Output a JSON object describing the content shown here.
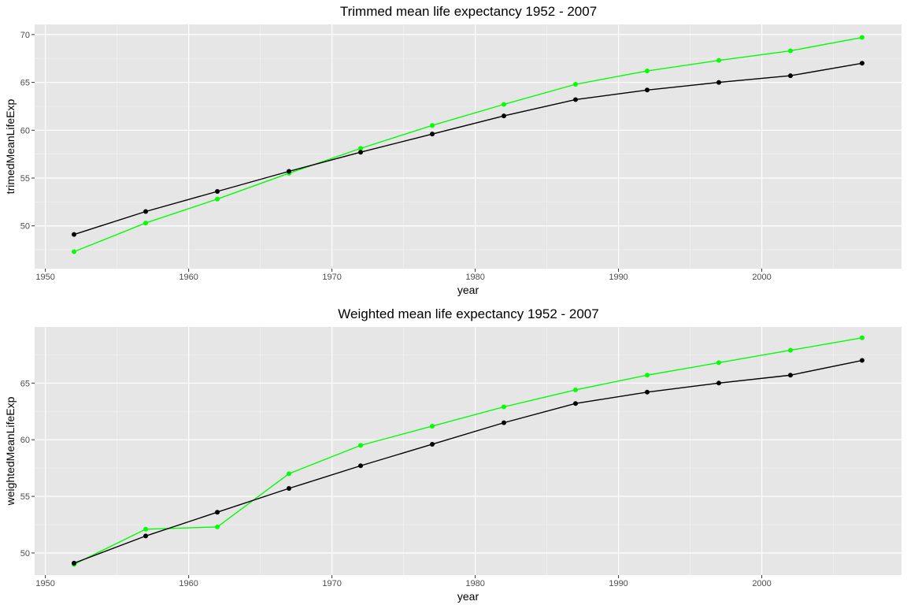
{
  "colors": {
    "panel_background": "#e6e6e6",
    "grid_major": "#ffffff",
    "grid_minor": "#f2f2f2",
    "tick_text": "#4d4d4d",
    "tick_mark": "#333333"
  },
  "chart_data": [
    {
      "type": "line",
      "title": "Trimmed mean life expectancy 1952 - 2007",
      "xlabel": "year",
      "ylabel": "trimedMeanLifeExp",
      "xlim": [
        1949.25,
        2009.75
      ],
      "ylim": [
        45.53,
        71.06
      ],
      "x_ticks": [
        1950,
        1960,
        1970,
        1980,
        1990,
        2000
      ],
      "y_ticks": [
        50,
        55,
        60,
        65,
        70
      ],
      "grid": true,
      "legend": "none",
      "x": [
        1952,
        1957,
        1962,
        1967,
        1972,
        1977,
        1982,
        1987,
        1992,
        1997,
        2002,
        2007
      ],
      "series": [
        {
          "color": "#00ff00",
          "values": [
            47.3,
            50.3,
            52.8,
            55.5,
            58.1,
            60.5,
            62.7,
            64.8,
            66.2,
            67.3,
            68.3,
            69.7
          ]
        },
        {
          "color": "#000000",
          "values": [
            49.1,
            51.5,
            53.6,
            55.7,
            57.7,
            59.6,
            61.5,
            63.2,
            64.2,
            65.0,
            65.7,
            67.0
          ]
        }
      ]
    },
    {
      "type": "line",
      "title": "Weighted mean life expectancy 1952 - 2007",
      "xlabel": "year",
      "ylabel": "weightedMeanLifeExp",
      "xlim": [
        1949.25,
        2009.75
      ],
      "ylim": [
        48.05,
        69.96
      ],
      "x_ticks": [
        1950,
        1960,
        1970,
        1980,
        1990,
        2000
      ],
      "y_ticks": [
        50,
        55,
        60,
        65
      ],
      "grid": true,
      "legend": "none",
      "x": [
        1952,
        1957,
        1962,
        1967,
        1972,
        1977,
        1982,
        1987,
        1992,
        1997,
        2002,
        2007
      ],
      "series": [
        {
          "color": "#00ff00",
          "values": [
            49.0,
            52.1,
            52.3,
            57.0,
            59.5,
            61.2,
            62.9,
            64.4,
            65.7,
            66.8,
            67.9,
            69.0
          ]
        },
        {
          "color": "#000000",
          "values": [
            49.1,
            51.5,
            53.6,
            55.7,
            57.7,
            59.6,
            61.5,
            63.2,
            64.2,
            65.0,
            65.7,
            67.0
          ]
        }
      ]
    }
  ]
}
